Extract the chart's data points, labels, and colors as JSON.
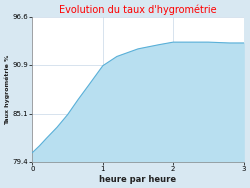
{
  "title": "Evolution du taux d'hygrométrie",
  "title_color": "#ff0000",
  "xlabel": "heure par heure",
  "ylabel": "Taux hygrométrie %",
  "background_color": "#d8e8f2",
  "axes_background_color": "#ffffff",
  "fill_color": "#b8dff0",
  "line_color": "#5ab0d8",
  "yticks": [
    79.4,
    85.1,
    90.9,
    96.6
  ],
  "xticks": [
    0,
    1,
    2,
    3
  ],
  "xlim": [
    0,
    3
  ],
  "ylim": [
    79.4,
    96.6
  ],
  "x_data": [
    0,
    0.1,
    0.2,
    0.35,
    0.5,
    0.65,
    0.8,
    1.0,
    1.2,
    1.5,
    1.8,
    2.0,
    2.2,
    2.5,
    2.8,
    3.0
  ],
  "y_data": [
    80.5,
    81.3,
    82.2,
    83.5,
    85.0,
    86.8,
    88.5,
    90.8,
    91.9,
    92.8,
    93.3,
    93.6,
    93.6,
    93.6,
    93.5,
    93.5
  ]
}
